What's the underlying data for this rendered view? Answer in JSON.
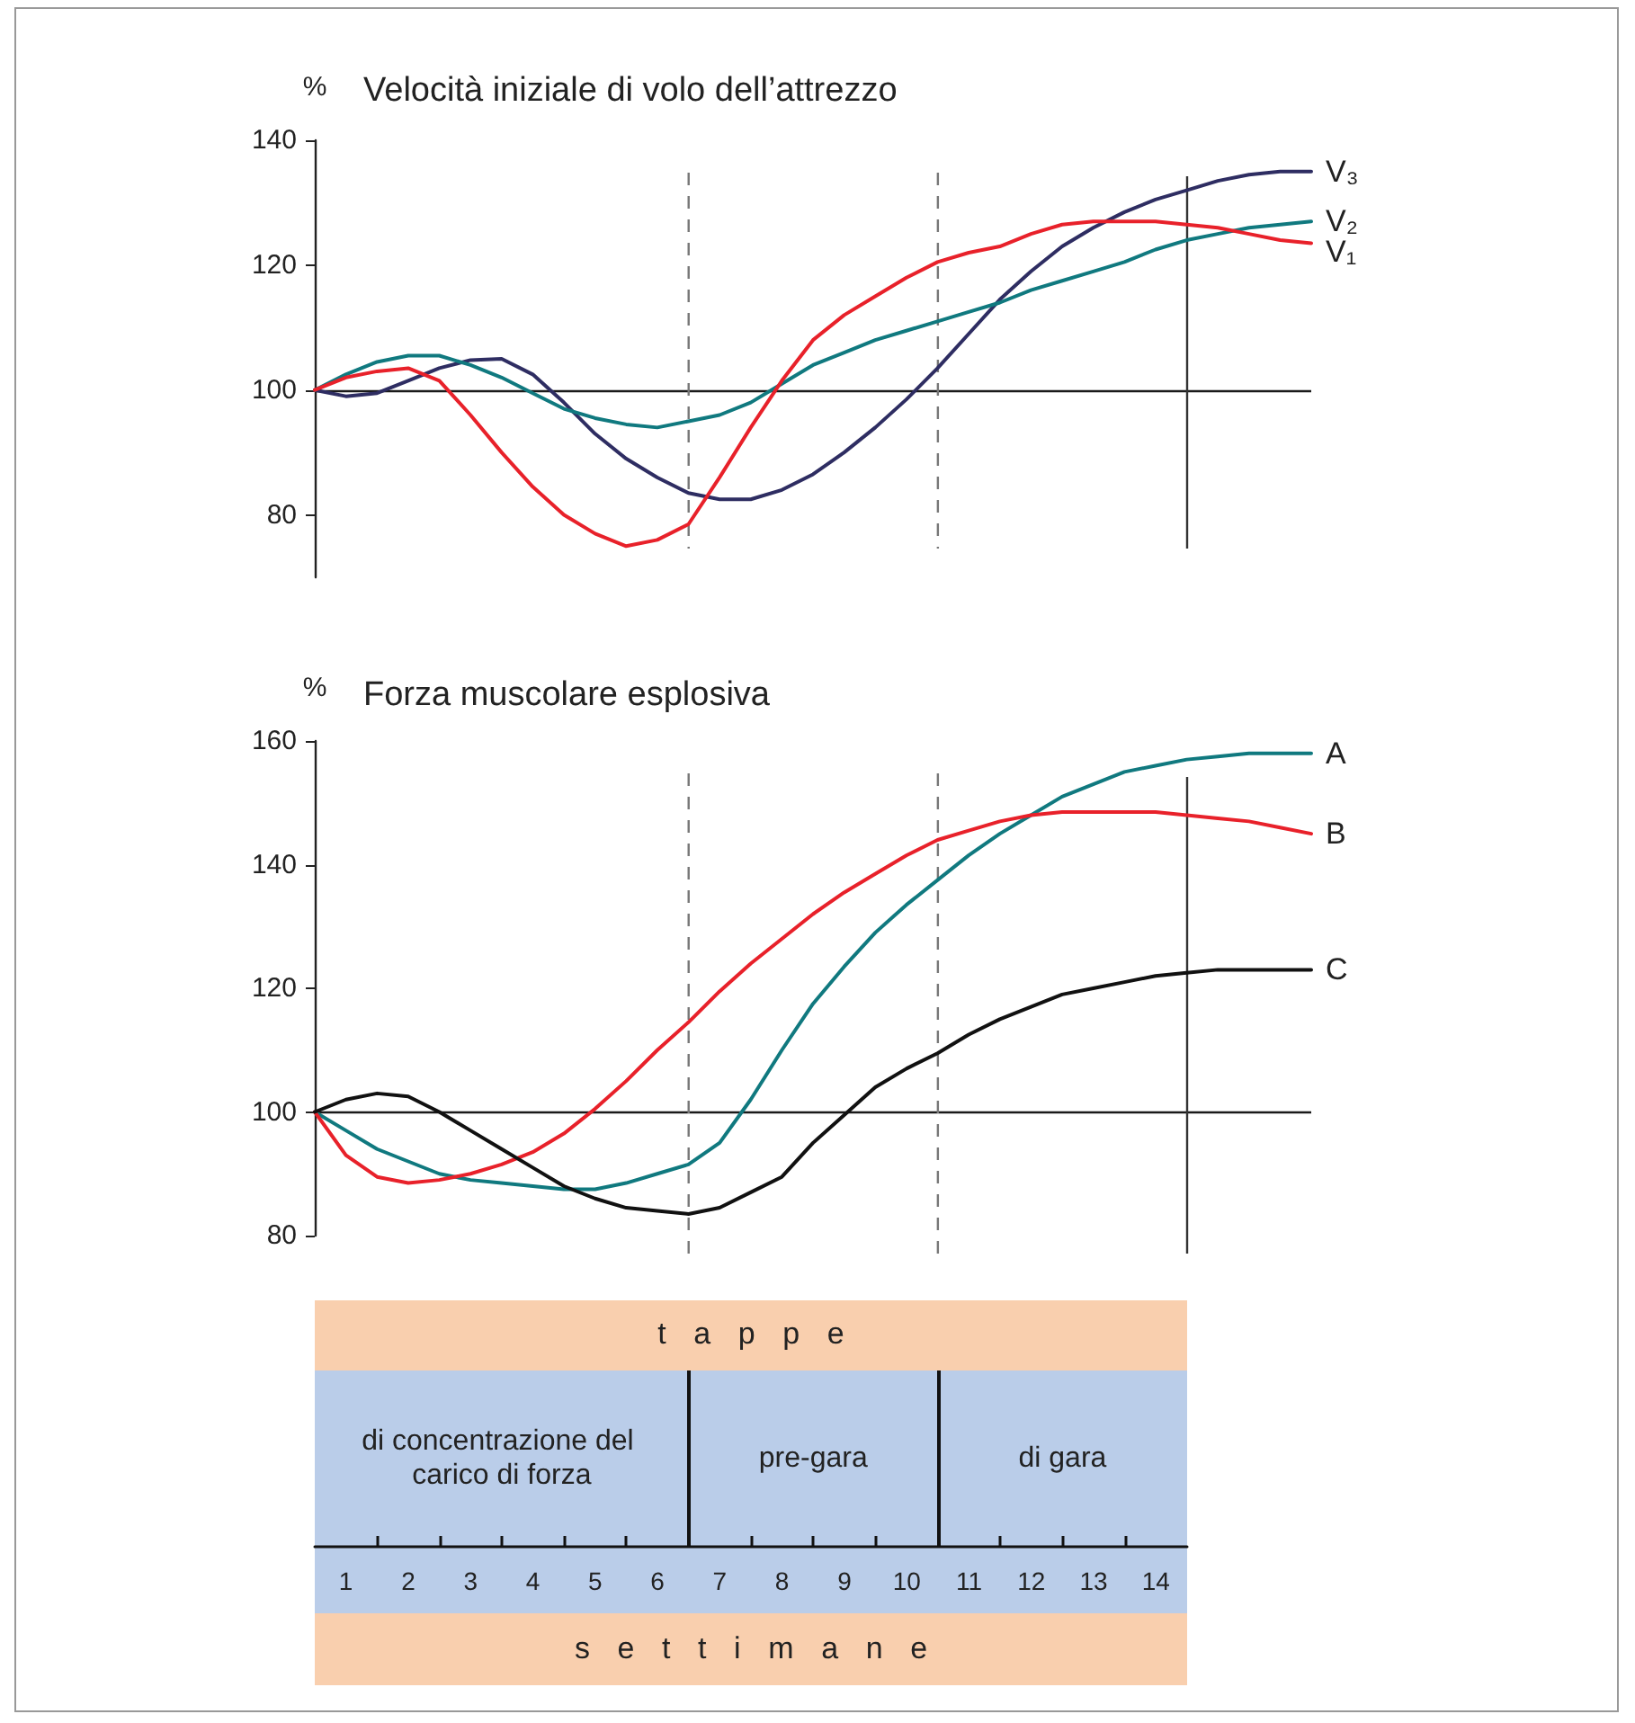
{
  "chart_data": [
    {
      "type": "line",
      "title": "Velocità iniziale di volo dell’attrezzo",
      "ylabel": "%",
      "categories": [
        null,
        null,
        null,
        null,
        null,
        null,
        null,
        null,
        null,
        null,
        null,
        null,
        null,
        null,
        null,
        null,
        null,
        null,
        null,
        null,
        null,
        null,
        null,
        null,
        null,
        null,
        null,
        null,
        null,
        null,
        null,
        null,
        null
      ],
      "ylim": [
        70,
        140
      ],
      "yticks": [
        80,
        100,
        120,
        140
      ],
      "tick_labels": "y",
      "marker": "none",
      "series": [
        {
          "name": "V₃",
          "color": "#2e2d62",
          "values": [
            100,
            99,
            99.5,
            101.5,
            103.5,
            104.8,
            105,
            102.5,
            98,
            93,
            89,
            86,
            83.5,
            82.5,
            82.5,
            84,
            86.5,
            90,
            94,
            98.5,
            103.5,
            109,
            114.5,
            119,
            123,
            126,
            128.5,
            130.5,
            132,
            133.5,
            134.5,
            135,
            135
          ]
        },
        {
          "name": "V₂",
          "color": "#10797f",
          "values": [
            100,
            102.5,
            104.5,
            105.5,
            105.5,
            104,
            102,
            99.5,
            97,
            95.5,
            94.5,
            94,
            95,
            96,
            98,
            101,
            104,
            106,
            108,
            109.5,
            111,
            112.5,
            114,
            116,
            117.5,
            119,
            120.5,
            122.5,
            124,
            125,
            126,
            126.5,
            127
          ]
        },
        {
          "name": "V₁",
          "color": "#e8212a",
          "values": [
            100,
            102,
            103,
            103.5,
            101.5,
            96,
            90,
            84.5,
            80,
            77,
            75,
            76,
            78.5,
            86,
            94,
            101.5,
            108,
            112,
            115,
            118,
            120.5,
            122,
            123,
            125,
            126.5,
            127,
            127,
            127,
            126.5,
            126,
            125,
            124,
            123.5
          ]
        }
      ],
      "ref_lines": [
        {
          "axis": "y",
          "value": 100,
          "color": "#1a1a1a",
          "line_style": "solid"
        }
      ]
    },
    {
      "type": "line",
      "title": "Forza muscolare esplosiva",
      "ylabel": "%",
      "categories": [
        null,
        null,
        null,
        null,
        null,
        null,
        null,
        null,
        null,
        null,
        null,
        null,
        null,
        null,
        null,
        null,
        null,
        null,
        null,
        null,
        null,
        null,
        null,
        null,
        null,
        null,
        null,
        null,
        null,
        null,
        null,
        null,
        null
      ],
      "ylim": [
        80,
        160
      ],
      "yticks": [
        80,
        100,
        120,
        140,
        160
      ],
      "tick_labels": "y",
      "marker": "none",
      "series": [
        {
          "name": "A",
          "color": "#10797f",
          "values": [
            100,
            97,
            94,
            92,
            90,
            89,
            88.5,
            88,
            87.5,
            87.5,
            88.5,
            90,
            91.5,
            95,
            102,
            110,
            117.5,
            123.5,
            129,
            133.5,
            137.5,
            141.5,
            145,
            148,
            151,
            153,
            155,
            156,
            157,
            157.5,
            158,
            158,
            158
          ]
        },
        {
          "name": "B",
          "color": "#e8212a",
          "values": [
            100,
            93,
            89.5,
            88.5,
            89,
            90,
            91.5,
            93.5,
            96.5,
            100.5,
            105,
            110,
            114.5,
            119.5,
            124,
            128,
            132,
            135.5,
            138.5,
            141.5,
            144,
            145.5,
            147,
            148,
            148.5,
            148.5,
            148.5,
            148.5,
            148,
            147.5,
            147,
            146,
            145
          ]
        },
        {
          "name": "C",
          "color": "#111111",
          "values": [
            100,
            102,
            103,
            102.5,
            100,
            97,
            94,
            91,
            88,
            86,
            84.5,
            84,
            83.5,
            84.5,
            87,
            89.5,
            95,
            99.5,
            104,
            107,
            109.5,
            112.5,
            115,
            117,
            119,
            120,
            121,
            122,
            122.5,
            123,
            123,
            123,
            123
          ]
        }
      ],
      "ref_lines": [
        {
          "axis": "y",
          "value": 100,
          "color": "#1a1a1a",
          "line_style": "solid"
        }
      ]
    },
    {
      "type": "bar",
      "orientation": "horizontal",
      "stacked": true,
      "title": "tappe",
      "xlabel": "settimane",
      "categories": [
        null
      ],
      "xlim": [
        0,
        14
      ],
      "tick_labels": "x",
      "xticks": [
        {
          "value": 0.5,
          "label": "1"
        },
        {
          "value": 1,
          "label": null
        },
        {
          "value": 1.5,
          "label": "2"
        },
        {
          "value": 2,
          "label": null
        },
        {
          "value": 2.5,
          "label": "3"
        },
        {
          "value": 3,
          "label": null
        },
        {
          "value": 3.5,
          "label": "4"
        },
        {
          "value": 4,
          "label": null
        },
        {
          "value": 4.5,
          "label": "5"
        },
        {
          "value": 5,
          "label": null
        },
        {
          "value": 5.5,
          "label": "6"
        },
        {
          "value": 6,
          "label": null
        },
        {
          "value": 6.5,
          "label": "7"
        },
        {
          "value": 7,
          "label": null
        },
        {
          "value": 7.5,
          "label": "8"
        },
        {
          "value": 8,
          "label": null
        },
        {
          "value": 8.5,
          "label": "9"
        },
        {
          "value": 9,
          "label": null
        },
        {
          "value": 9.5,
          "label": "10"
        },
        {
          "value": 10,
          "label": null
        },
        {
          "value": 10.5,
          "label": "11"
        },
        {
          "value": 11,
          "label": null
        },
        {
          "value": 11.5,
          "label": "12"
        },
        {
          "value": 12,
          "label": null
        },
        {
          "value": 12.5,
          "label": "13"
        },
        {
          "value": 13,
          "label": null
        },
        {
          "value": 13.5,
          "label": "14"
        }
      ],
      "series": [
        {
          "name": "di concentrazione del carico di forza",
          "color": "#bacde9",
          "values": [
            6
          ]
        },
        {
          "name": "pre-gara",
          "color": "#bacde9",
          "values": [
            4
          ]
        },
        {
          "name": "di gara",
          "color": "#bacde9",
          "values": [
            4
          ]
        }
      ]
    }
  ]
}
